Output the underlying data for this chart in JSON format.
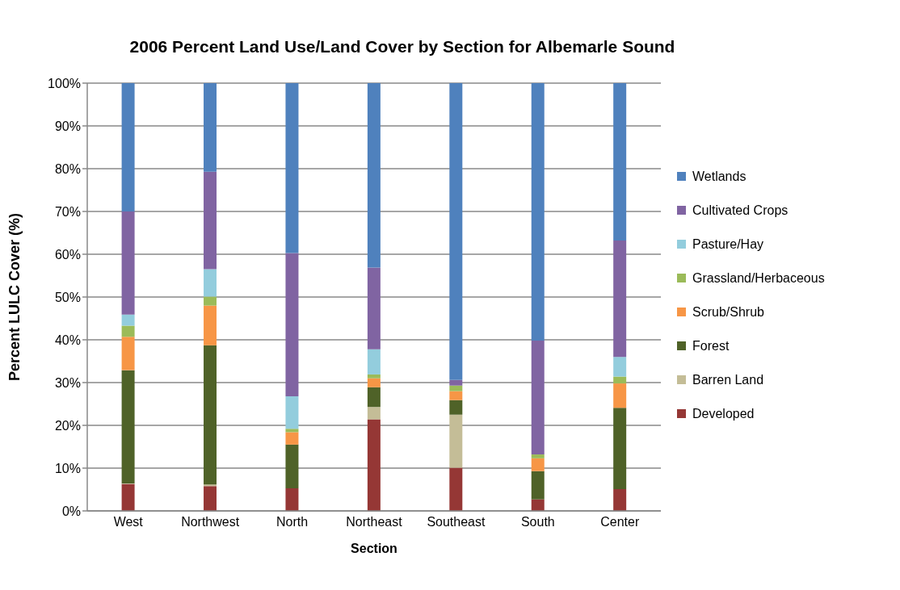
{
  "chart_data": {
    "type": "bar",
    "stacked": true,
    "title": "2006 Percent Land Use/Land Cover by Section for Albemarle Sound",
    "xlabel": "Section",
    "ylabel": "Percent LULC Cover (%)",
    "categories": [
      "West",
      "Northwest",
      "North",
      "Northeast",
      "Southeast",
      "South",
      "Center"
    ],
    "series": [
      {
        "name": "Developed",
        "color": "#953735",
        "values": [
          6.3,
          5.8,
          5.3,
          21.4,
          10.1,
          2.7,
          5.1
        ]
      },
      {
        "name": "Barren Land",
        "color": "#c4bd97",
        "values": [
          0.1,
          0.4,
          0,
          2.9,
          12.4,
          0,
          0
        ]
      },
      {
        "name": "Forest",
        "color": "#4f6228",
        "values": [
          26.5,
          32.5,
          10.2,
          4.6,
          3.4,
          6.6,
          19.0
        ]
      },
      {
        "name": "Scrub/Shrub",
        "color": "#f79646",
        "values": [
          7.8,
          9.3,
          2.9,
          2.1,
          2.1,
          3.0,
          5.7
        ]
      },
      {
        "name": "Grassland/Herbaceous",
        "color": "#9bbb59",
        "values": [
          2.6,
          2.1,
          0.8,
          0.9,
          1.3,
          0.9,
          1.6
        ]
      },
      {
        "name": "Pasture/Hay",
        "color": "#93cddd",
        "values": [
          2.6,
          6.4,
          7.6,
          5.9,
          0,
          0,
          4.6
        ]
      },
      {
        "name": "Cultivated Crops",
        "color": "#8064a2",
        "values": [
          24.1,
          22.8,
          33.5,
          19.1,
          1.3,
          26.6,
          27.2
        ]
      },
      {
        "name": "Wetlands",
        "color": "#4f81bd",
        "values": [
          30.0,
          20.7,
          39.7,
          43.1,
          69.4,
          60.2,
          36.8
        ]
      }
    ],
    "ylim": [
      0,
      100
    ],
    "yticks": [
      {
        "value": 0,
        "label": "0%"
      },
      {
        "value": 10,
        "label": "10%"
      },
      {
        "value": 20,
        "label": "20%"
      },
      {
        "value": 30,
        "label": "30%"
      },
      {
        "value": 40,
        "label": "40%"
      },
      {
        "value": 50,
        "label": "50%"
      },
      {
        "value": 60,
        "label": "60%"
      },
      {
        "value": 70,
        "label": "70%"
      },
      {
        "value": 80,
        "label": "80%"
      },
      {
        "value": 90,
        "label": "90%"
      },
      {
        "value": 100,
        "label": "100%"
      }
    ],
    "grid": "y",
    "legend": "right"
  }
}
